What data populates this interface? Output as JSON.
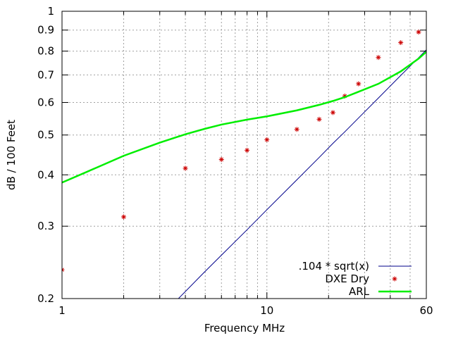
{
  "chart_data": {
    "type": "scatter",
    "title": "",
    "xlabel": "Frequency MHz",
    "ylabel": "dB / 100 Feet",
    "xscale": "log",
    "yscale": "log",
    "xlim": [
      1,
      60
    ],
    "ylim": [
      0.2,
      1
    ],
    "x_ticks": [
      {
        "value": 1,
        "label": "1"
      },
      {
        "value": 10,
        "label": "10"
      },
      {
        "value": 60,
        "label": "60"
      }
    ],
    "y_ticks": [
      {
        "value": 0.2,
        "label": "0.2"
      },
      {
        "value": 0.3,
        "label": "0.3"
      },
      {
        "value": 0.4,
        "label": "0.4"
      },
      {
        "value": 0.5,
        "label": "0.5"
      },
      {
        "value": 0.6,
        "label": "0.6"
      },
      {
        "value": 0.7,
        "label": "0.7"
      },
      {
        "value": 0.8,
        "label": "0.8"
      },
      {
        "value": 0.9,
        "label": "0.9"
      },
      {
        "value": 1,
        "label": "1"
      }
    ],
    "grid": true,
    "legend_position": "bottom-right",
    "series": [
      {
        "name": ".104 * sqrt(x)",
        "kind": "line",
        "color": "#00008b",
        "x": [
          3.7,
          5,
          6,
          8,
          10,
          14,
          18,
          21,
          24,
          28,
          35,
          45,
          55,
          60
        ],
        "y": [
          0.2,
          0.233,
          0.255,
          0.294,
          0.329,
          0.389,
          0.441,
          0.477,
          0.509,
          0.55,
          0.615,
          0.698,
          0.771,
          0.806
        ]
      },
      {
        "name": "DXE Dry",
        "kind": "points",
        "marker": "*",
        "color": "#cc0000",
        "x": [
          1,
          2,
          4,
          6,
          8,
          10,
          14,
          18,
          21,
          24,
          28,
          35,
          45,
          55
        ],
        "y": [
          0.235,
          0.316,
          0.415,
          0.436,
          0.459,
          0.487,
          0.516,
          0.546,
          0.567,
          0.622,
          0.666,
          0.772,
          0.839,
          0.89
        ]
      },
      {
        "name": "ARL",
        "kind": "line",
        "color": "#00ee00",
        "x": [
          1,
          1.5,
          2,
          3,
          4,
          5,
          6,
          8,
          10,
          14,
          18,
          21,
          24,
          28,
          35,
          45,
          55,
          60
        ],
        "y": [
          0.383,
          0.418,
          0.445,
          0.479,
          0.502,
          0.518,
          0.53,
          0.545,
          0.555,
          0.574,
          0.592,
          0.605,
          0.618,
          0.637,
          0.666,
          0.714,
          0.767,
          0.797
        ]
      }
    ]
  }
}
